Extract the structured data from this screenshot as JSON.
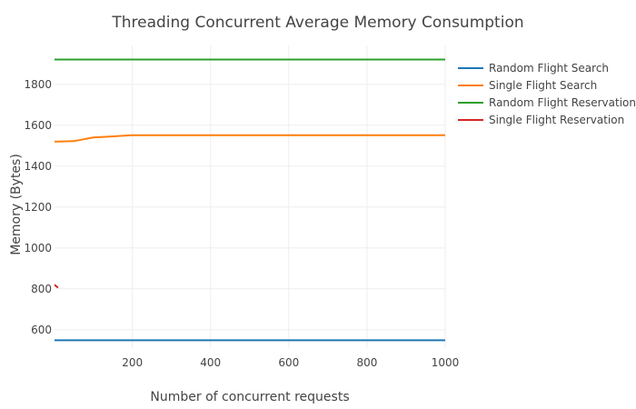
{
  "chart_data": {
    "type": "line",
    "title": "Threading Concurrent Average Memory Consumption",
    "xlabel": "Number of concurrent requests",
    "ylabel": "Memory (Bytes)",
    "xlim": [
      1,
      1000
    ],
    "ylim": [
      510,
      1990
    ],
    "xticks": [
      200,
      400,
      600,
      800,
      1000
    ],
    "yticks": [
      600,
      800,
      1000,
      1200,
      1400,
      1600,
      1800
    ],
    "grid": true,
    "legend_position": "top-right",
    "series": [
      {
        "name": "Random Flight Search",
        "color": "#1f77b4",
        "x": [
          1,
          10,
          50,
          100,
          200,
          500,
          1000
        ],
        "y": [
          548,
          548,
          548,
          548,
          548,
          548,
          548
        ]
      },
      {
        "name": "Single Flight Search",
        "color": "#ff7f0e",
        "x": [
          1,
          10,
          50,
          100,
          200,
          500,
          1000
        ],
        "y": [
          1520,
          1520,
          1522,
          1540,
          1551,
          1551,
          1551
        ]
      },
      {
        "name": "Random Flight Reservation",
        "color": "#2ca02c",
        "x": [
          1,
          10,
          50,
          100,
          200,
          500,
          1000
        ],
        "y": [
          1921,
          1921,
          1921,
          1921,
          1921,
          1921,
          1921
        ]
      },
      {
        "name": "Single Flight Reservation",
        "color": "#d62728",
        "x": [
          1,
          10
        ],
        "y": [
          820,
          805
        ]
      }
    ]
  }
}
